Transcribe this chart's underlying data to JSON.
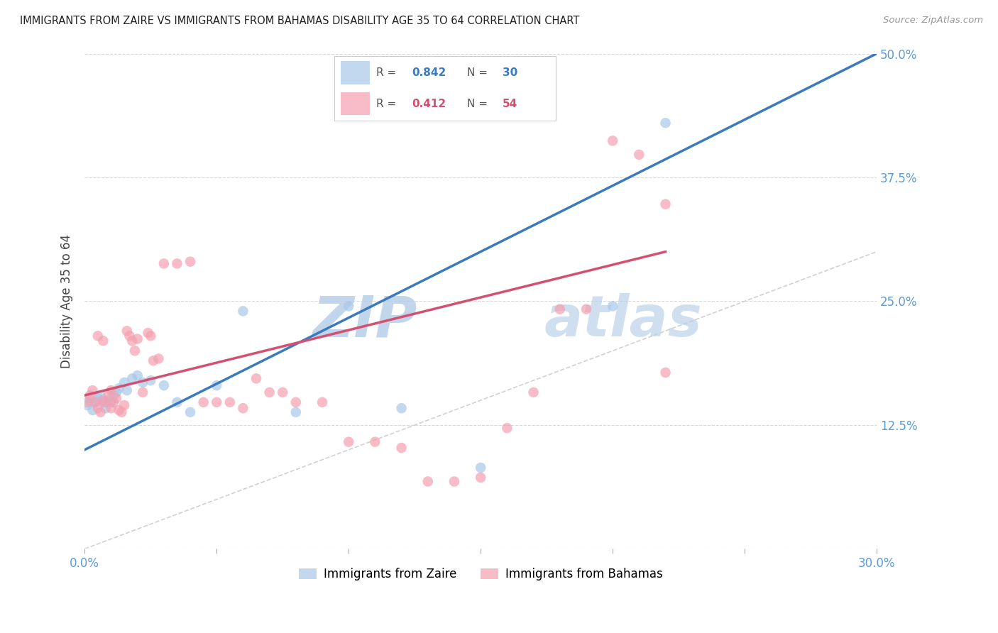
{
  "title": "IMMIGRANTS FROM ZAIRE VS IMMIGRANTS FROM BAHAMAS DISABILITY AGE 35 TO 64 CORRELATION CHART",
  "source": "Source: ZipAtlas.com",
  "ylabel": "Disability Age 35 to 64",
  "xlim": [
    0.0,
    0.3
  ],
  "ylim": [
    0.0,
    0.5
  ],
  "zaire_color": "#a8c8e8",
  "bahamas_color": "#f4a0b0",
  "zaire_R": 0.842,
  "zaire_N": 30,
  "bahamas_R": 0.412,
  "bahamas_N": 54,
  "diagonal_color": "#cccccc",
  "zaire_line_color": "#3a7abf",
  "bahamas_line_color": "#d45070",
  "watermark_color": "#dce8f0",
  "zaire_x": [
    0.001,
    0.002,
    0.003,
    0.004,
    0.005,
    0.006,
    0.007,
    0.008,
    0.009,
    0.01,
    0.011,
    0.012,
    0.013,
    0.015,
    0.016,
    0.018,
    0.02,
    0.022,
    0.025,
    0.03,
    0.035,
    0.04,
    0.05,
    0.06,
    0.08,
    0.1,
    0.12,
    0.15,
    0.2,
    0.22
  ],
  "zaire_y": [
    0.145,
    0.15,
    0.14,
    0.148,
    0.152,
    0.155,
    0.148,
    0.142,
    0.15,
    0.148,
    0.155,
    0.158,
    0.162,
    0.168,
    0.16,
    0.172,
    0.175,
    0.168,
    0.17,
    0.165,
    0.148,
    0.138,
    0.165,
    0.24,
    0.138,
    0.245,
    0.142,
    0.082,
    0.245,
    0.43
  ],
  "bahamas_x": [
    0.001,
    0.002,
    0.003,
    0.004,
    0.005,
    0.006,
    0.007,
    0.008,
    0.009,
    0.01,
    0.011,
    0.012,
    0.013,
    0.014,
    0.015,
    0.016,
    0.017,
    0.018,
    0.019,
    0.02,
    0.022,
    0.024,
    0.025,
    0.026,
    0.028,
    0.03,
    0.035,
    0.04,
    0.045,
    0.05,
    0.055,
    0.06,
    0.065,
    0.07,
    0.075,
    0.08,
    0.09,
    0.1,
    0.11,
    0.12,
    0.13,
    0.14,
    0.15,
    0.16,
    0.17,
    0.18,
    0.19,
    0.2,
    0.21,
    0.22,
    0.005,
    0.007,
    0.01,
    0.22
  ],
  "bahamas_y": [
    0.148,
    0.155,
    0.16,
    0.148,
    0.142,
    0.138,
    0.15,
    0.148,
    0.155,
    0.142,
    0.148,
    0.152,
    0.14,
    0.138,
    0.145,
    0.22,
    0.215,
    0.21,
    0.2,
    0.212,
    0.158,
    0.218,
    0.215,
    0.19,
    0.192,
    0.288,
    0.288,
    0.29,
    0.148,
    0.148,
    0.148,
    0.142,
    0.172,
    0.158,
    0.158,
    0.148,
    0.148,
    0.108,
    0.108,
    0.102,
    0.068,
    0.068,
    0.072,
    0.122,
    0.158,
    0.242,
    0.242,
    0.412,
    0.398,
    0.348,
    0.215,
    0.21,
    0.16,
    0.178
  ]
}
